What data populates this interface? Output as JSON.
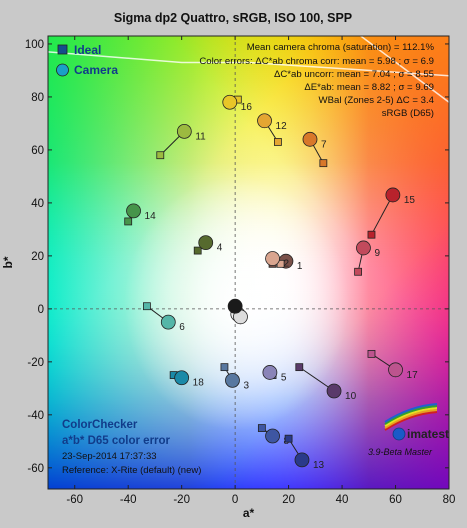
{
  "chart_data": {
    "type": "scatter",
    "title": "Sigma dp2 Quattro, sRGB, ISO 100, SPP",
    "xlabel": "a*",
    "ylabel": "b*",
    "xlim": [
      -70,
      80
    ],
    "ylim": [
      -68,
      103
    ],
    "xticks": [
      -60,
      -40,
      -20,
      0,
      20,
      40,
      60,
      80
    ],
    "yticks": [
      -60,
      -40,
      -20,
      0,
      20,
      40,
      60,
      80,
      100
    ],
    "grid": false,
    "legend": {
      "placement": "top-left",
      "entries": [
        {
          "name": "Ideal",
          "marker": "square",
          "color": "#14508c"
        },
        {
          "name": "Camera",
          "marker": "circle",
          "color": "#1aa0c8"
        }
      ]
    },
    "info_lines": [
      "Mean camera chroma (saturation) = 112.1%",
      "Color errors: ΔC*ab chroma corr:  mean = 5.98 ;  σ = 6.9",
      "ΔC*ab uncorr:  mean = 7.04 ;  σ = 8.55",
      "ΔE*ab:  mean = 8.82 ;  σ = 9.69",
      "WBal (Zones 2-5) ΔC = 3.4",
      "sRGB (D65)"
    ],
    "bottom_left": {
      "line1": "ColorChecker",
      "line2": "a*b* D65 color error",
      "line3": "23-Sep-2014 17:37:33",
      "line4": "Reference: X-Rite (default) (new)"
    },
    "logo": {
      "name": "imatest",
      "subtitle": "3.9-Beta  Master"
    },
    "patches": [
      {
        "n": "1",
        "ideal": [
          14,
          17
        ],
        "camera": [
          19,
          18
        ],
        "color": "#7a5048"
      },
      {
        "n": "2",
        "ideal": [
          17,
          17
        ],
        "camera": [
          14,
          19
        ],
        "color": "#d9a58f"
      },
      {
        "n": "3",
        "ideal": [
          -4,
          -22
        ],
        "camera": [
          -1,
          -27
        ],
        "color": "#5878a0"
      },
      {
        "n": "4",
        "ideal": [
          -14,
          22
        ],
        "camera": [
          -11,
          25
        ],
        "color": "#566a2e"
      },
      {
        "n": "5",
        "ideal": [
          14,
          -25
        ],
        "camera": [
          13,
          -24
        ],
        "color": "#8a84b8"
      },
      {
        "n": "6",
        "ideal": [
          -33,
          1
        ],
        "camera": [
          -25,
          -5
        ],
        "color": "#55b6a8"
      },
      {
        "n": "7",
        "ideal": [
          33,
          55
        ],
        "camera": [
          28,
          64
        ],
        "color": "#d8782a"
      },
      {
        "n": "8",
        "ideal": [
          10,
          -45
        ],
        "camera": [
          14,
          -48
        ],
        "color": "#3e56a2"
      },
      {
        "n": "9",
        "ideal": [
          46,
          14
        ],
        "camera": [
          48,
          23
        ],
        "color": "#c24a5c"
      },
      {
        "n": "10",
        "ideal": [
          24,
          -22
        ],
        "camera": [
          37,
          -31
        ],
        "color": "#5a3a6a"
      },
      {
        "n": "11",
        "ideal": [
          -28,
          58
        ],
        "camera": [
          -19,
          67
        ],
        "color": "#9cba40"
      },
      {
        "n": "12",
        "ideal": [
          16,
          63
        ],
        "camera": [
          11,
          71
        ],
        "color": "#e4a632"
      },
      {
        "n": "13",
        "ideal": [
          20,
          -49
        ],
        "camera": [
          25,
          -57
        ],
        "color": "#2a3a8a"
      },
      {
        "n": "14",
        "ideal": [
          -40,
          33
        ],
        "camera": [
          -38,
          37
        ],
        "color": "#46944a"
      },
      {
        "n": "15",
        "ideal": [
          51,
          28
        ],
        "camera": [
          59,
          43
        ],
        "color": "#b8222c"
      },
      {
        "n": "16",
        "ideal": [
          1,
          79
        ],
        "camera": [
          -2,
          78
        ],
        "color": "#e8c628"
      },
      {
        "n": "17",
        "ideal": [
          51,
          -17
        ],
        "camera": [
          60,
          -23
        ],
        "color": "#bc548e"
      },
      {
        "n": "18",
        "ideal": [
          -23,
          -25
        ],
        "camera": [
          -20,
          -26
        ],
        "color": "#1a8aa8"
      },
      {
        "n": "n1",
        "ideal": [
          0,
          0
        ],
        "camera": [
          1,
          -2
        ],
        "color": "#f2f2f2"
      },
      {
        "n": "n2",
        "ideal": [
          0,
          0
        ],
        "camera": [
          2,
          -3
        ],
        "color": "#dcdcdc"
      },
      {
        "n": "n3",
        "ideal": [
          0,
          0
        ],
        "camera": [
          0,
          1
        ],
        "color": "#1a1a1a"
      }
    ]
  }
}
